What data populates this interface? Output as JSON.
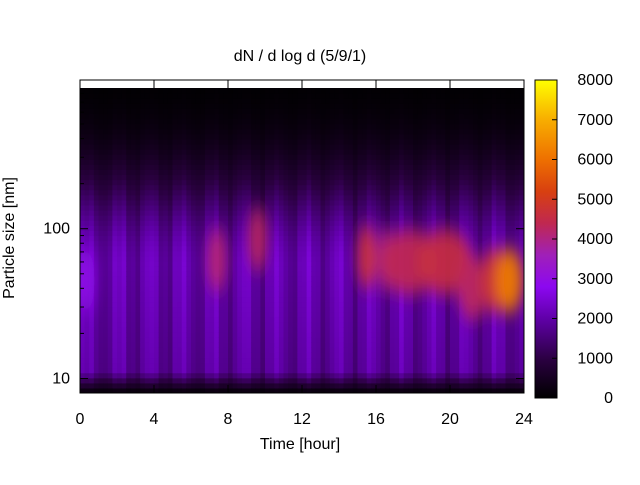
{
  "chart_data": {
    "type": "heatmap",
    "title": "dN / d log d (5/9/1)",
    "xlabel": "Time [hour]",
    "ylabel": "Particle size [nm]",
    "xlim": [
      0,
      24
    ],
    "ylim": [
      8,
      870
    ],
    "y_scale": "log",
    "x_ticks": [
      0,
      4,
      8,
      12,
      16,
      20,
      24
    ],
    "y_ticks": [
      10,
      100
    ],
    "colorbar": {
      "min": 0,
      "max": 8000,
      "ticks": [
        0,
        1000,
        2000,
        3000,
        4000,
        5000,
        6000,
        7000,
        8000
      ],
      "palette": "gnuplot (black-purple-red-orange-yellow)"
    },
    "grid": false,
    "hotspots": [
      {
        "time_hour": 0.3,
        "size_nm": 45,
        "value": 2900
      },
      {
        "time_hour": 7.4,
        "size_nm": 62,
        "value": 4200
      },
      {
        "time_hour": 9.6,
        "size_nm": 85,
        "value": 4300
      },
      {
        "time_hour": 15.5,
        "size_nm": 65,
        "value": 4800
      },
      {
        "time_hour": 16.5,
        "size_nm": 62,
        "value": 4000
      },
      {
        "time_hour": 17.8,
        "size_nm": 60,
        "value": 4400
      },
      {
        "time_hour": 19.7,
        "size_nm": 60,
        "value": 4600
      },
      {
        "time_hour": 21.2,
        "size_nm": 40,
        "value": 4300
      },
      {
        "time_hour": 22.4,
        "size_nm": 45,
        "value": 4800
      },
      {
        "time_hour": 23.2,
        "size_nm": 45,
        "value": 6200
      }
    ]
  }
}
